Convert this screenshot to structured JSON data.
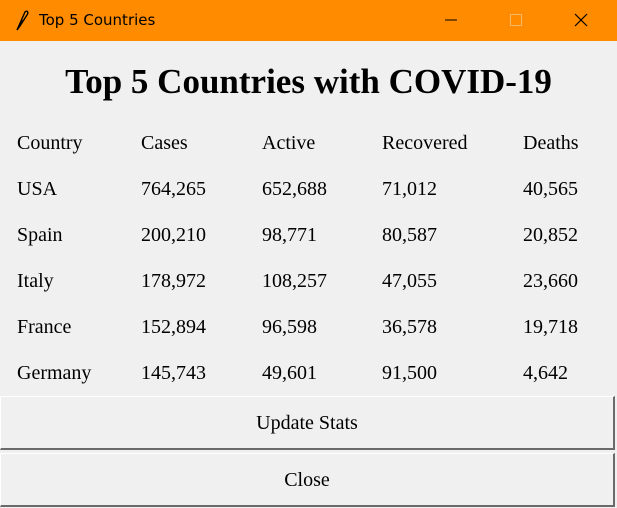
{
  "window": {
    "title": "Top 5 Countries",
    "icon": "feather-icon"
  },
  "main": {
    "heading": "Top 5 Countries with COVID-19",
    "columns": [
      "Country",
      "Cases",
      "Active",
      "Recovered",
      "Deaths"
    ],
    "rows": [
      [
        "USA",
        "764,265",
        "652,688",
        "71,012",
        "40,565"
      ],
      [
        "Spain",
        "200,210",
        "98,771",
        "80,587",
        "20,852"
      ],
      [
        "Italy",
        "178,972",
        "108,257",
        "47,055",
        "23,660"
      ],
      [
        "France",
        "152,894",
        "96,598",
        "36,578",
        "19,718"
      ],
      [
        "Germany",
        "145,743",
        "49,601",
        "91,500",
        "4,642"
      ]
    ]
  },
  "buttons": {
    "update_label": "Update Stats",
    "close_label": "Close"
  },
  "colors": {
    "titlebar": "#ff8c00",
    "background": "#f0f0f0"
  }
}
